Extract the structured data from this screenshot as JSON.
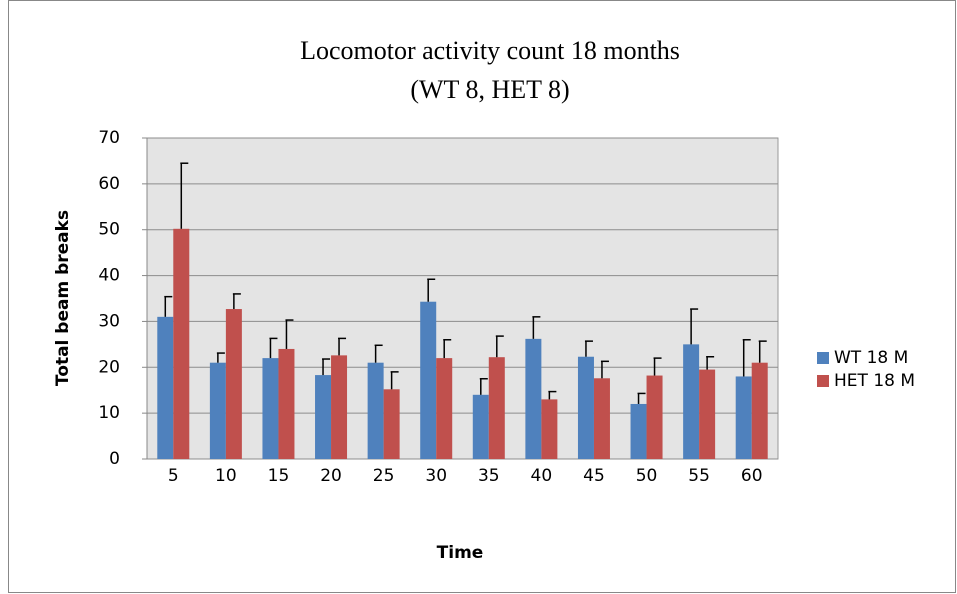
{
  "chart_data": {
    "type": "bar",
    "title": [
      "Locomotor activity count 18 months",
      "(WT 8, HET 8)"
    ],
    "x_label": "Time",
    "y_label": "Total beam breaks",
    "categories": [
      "5",
      "10",
      "15",
      "20",
      "25",
      "30",
      "35",
      "40",
      "45",
      "50",
      "55",
      "60"
    ],
    "series": [
      {
        "name": "WT 18 M",
        "color": "#4f81bd",
        "values": [
          31,
          21,
          22,
          18.3,
          21,
          34.3,
          14,
          26.2,
          22.3,
          12,
          25,
          18
        ],
        "errors": [
          4.4,
          2.1,
          4.3,
          3.5,
          3.8,
          4.9,
          3.5,
          4.8,
          3.4,
          2.3,
          7.7,
          8
        ]
      },
      {
        "name": "HET 18 M",
        "color": "#c0504d",
        "values": [
          50.2,
          32.7,
          24,
          22.6,
          15.2,
          22,
          22.2,
          13,
          17.6,
          18.2,
          19.5,
          21
        ],
        "errors": [
          14.3,
          3.3,
          6.3,
          3.7,
          3.8,
          4,
          4.6,
          1.7,
          3.7,
          3.8,
          2.8,
          4.7
        ]
      }
    ],
    "ylim": [
      0,
      70
    ],
    "yticks": [
      0,
      10,
      20,
      30,
      40,
      50,
      60,
      70
    ],
    "grid": true,
    "legend": "right"
  }
}
